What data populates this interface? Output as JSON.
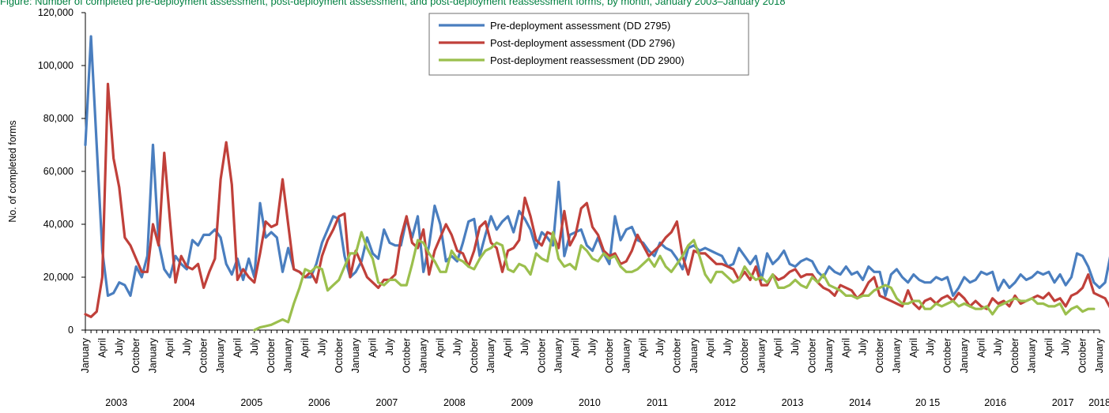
{
  "caption": "Figure: Number of completed pre-deployment assessment, post-deployment assessment, and post-deployment reassessment forms, by month, January 2003–January 2018",
  "chart_data": {
    "type": "line",
    "title": "",
    "xlabel": "",
    "ylabel": "No. of completed forms",
    "ylim": [
      0,
      120000
    ],
    "yticks": [
      0,
      20000,
      40000,
      60000,
      80000,
      100000,
      120000
    ],
    "ytick_labels": [
      "0",
      "20,000",
      "40,000",
      "60,000",
      "80,000",
      "100,000",
      "120,000"
    ],
    "x_start": "2003-01",
    "x_end": "2018-01",
    "month_tick_labels": [
      "January",
      "April",
      "July",
      "October"
    ],
    "years": [
      "2003",
      "2004",
      "2005",
      "2006",
      "2007",
      "2008",
      "2009",
      "2010",
      "2011",
      "2012",
      "2013",
      "2014",
      "20 15",
      "2016",
      "2017",
      "2018"
    ],
    "grid": false,
    "legend_position": "top-center",
    "series": [
      {
        "name": "Pre-deployment assessment (DD 2795)",
        "color": "#4a7ebf",
        "start": "2003-01",
        "values": [
          70000,
          111000,
          70000,
          30000,
          13000,
          14000,
          18000,
          17000,
          13000,
          24000,
          20000,
          28000,
          70000,
          33000,
          23000,
          20000,
          28000,
          25000,
          23000,
          34000,
          32000,
          36000,
          36000,
          38000,
          35000,
          25000,
          21000,
          27000,
          19000,
          27000,
          20000,
          48000,
          35000,
          37000,
          35000,
          22000,
          31000,
          23000,
          22000,
          20000,
          20000,
          25000,
          33000,
          38000,
          43000,
          42000,
          28000,
          20000,
          22000,
          26000,
          35000,
          29000,
          27000,
          38000,
          33000,
          32000,
          32000,
          42000,
          35000,
          43000,
          22000,
          32000,
          47000,
          40000,
          26000,
          28000,
          26000,
          33000,
          41000,
          42000,
          28000,
          36000,
          43000,
          38000,
          41000,
          43000,
          37000,
          45000,
          42000,
          38000,
          31000,
          37000,
          35000,
          32000,
          56000,
          28000,
          36000,
          37000,
          38000,
          32000,
          30000,
          35000,
          29000,
          25000,
          43000,
          34000,
          38000,
          39000,
          34000,
          33000,
          30000,
          28000,
          33000,
          31000,
          30000,
          27000,
          23000,
          31000,
          32000,
          30000,
          31000,
          30000,
          29000,
          28000,
          24000,
          25000,
          31000,
          28000,
          25000,
          28000,
          19000,
          29000,
          25000,
          27000,
          30000,
          25000,
          24000,
          26000,
          27000,
          26000,
          22000,
          20000,
          24000,
          22000,
          21000,
          24000,
          21000,
          22000,
          19000,
          24000,
          22000,
          22000,
          13000,
          21000,
          23000,
          20000,
          18000,
          21000,
          19000,
          18000,
          18000,
          20000,
          19000,
          20000,
          13000,
          16000,
          20000,
          18000,
          19000,
          22000,
          21000,
          22000,
          15000,
          19000,
          16000,
          18000,
          21000,
          19000,
          20000,
          22000,
          21000,
          22000,
          18000,
          21000,
          17000,
          20000,
          29000,
          28000,
          24000,
          18000,
          16000,
          18000,
          29000,
          29000
        ]
      },
      {
        "name": "Post-deployment assessment (DD 2796)",
        "color": "#c0403a",
        "start": "2003-01",
        "values": [
          6000,
          5000,
          7000,
          20000,
          93000,
          65000,
          54000,
          35000,
          32000,
          27000,
          22000,
          22000,
          40000,
          32000,
          67000,
          42000,
          18000,
          28000,
          24000,
          23000,
          25000,
          16000,
          22000,
          27000,
          57000,
          71000,
          55000,
          19000,
          23000,
          20000,
          18000,
          29000,
          41000,
          39000,
          40000,
          57000,
          40000,
          23000,
          22000,
          20000,
          22000,
          18000,
          28000,
          34000,
          38000,
          43000,
          44000,
          20000,
          30000,
          25000,
          20000,
          18000,
          16000,
          19000,
          19000,
          21000,
          35000,
          43000,
          33000,
          31000,
          38000,
          21000,
          30000,
          35000,
          40000,
          36000,
          30000,
          29000,
          24000,
          30000,
          39000,
          41000,
          33000,
          31000,
          22000,
          30000,
          31000,
          34000,
          50000,
          43000,
          34000,
          32000,
          37000,
          36000,
          31000,
          45000,
          32000,
          36000,
          46000,
          48000,
          39000,
          36000,
          30000,
          28000,
          29000,
          25000,
          26000,
          30000,
          36000,
          32000,
          28000,
          30000,
          32000,
          35000,
          37000,
          41000,
          28000,
          21000,
          30000,
          29000,
          29000,
          27000,
          25000,
          25000,
          24000,
          23000,
          19000,
          22000,
          19000,
          24000,
          17000,
          17000,
          21000,
          19000,
          20000,
          22000,
          23000,
          20000,
          21000,
          21000,
          18000,
          16000,
          15000,
          13000,
          17000,
          16000,
          15000,
          12000,
          14000,
          18000,
          20000,
          13000,
          12000,
          11000,
          10000,
          9000,
          15000,
          10000,
          8000,
          11000,
          12000,
          10000,
          12000,
          13000,
          11000,
          14000,
          12000,
          9000,
          11000,
          9000,
          8000,
          12000,
          10000,
          11000,
          9000,
          13000,
          10000,
          11000,
          12000,
          13000,
          12000,
          14000,
          11000,
          12000,
          9000,
          13000,
          14000,
          16000,
          21000,
          14000,
          13000,
          12000,
          8000,
          9000
        ]
      },
      {
        "name": "Post-deployment reassessment (DD 2900)",
        "color": "#9bbf4d",
        "start": "2005-07",
        "values": [
          0,
          1000,
          1500,
          2000,
          3000,
          4000,
          3000,
          10000,
          16000,
          23000,
          22000,
          24000,
          23000,
          15000,
          17000,
          19000,
          24000,
          29000,
          29000,
          37000,
          31000,
          27000,
          18000,
          17000,
          19000,
          19000,
          17000,
          17000,
          25000,
          34000,
          33000,
          29000,
          26000,
          22000,
          22000,
          30000,
          27000,
          26000,
          24000,
          23000,
          27000,
          30000,
          31000,
          33000,
          32000,
          23000,
          22000,
          25000,
          24000,
          21000,
          29000,
          27000,
          26000,
          37000,
          27000,
          24000,
          25000,
          23000,
          32000,
          30000,
          27000,
          26000,
          29000,
          27000,
          28000,
          24000,
          22000,
          22000,
          23000,
          25000,
          27000,
          24000,
          28000,
          24000,
          22000,
          25000,
          28000,
          32000,
          34000,
          28000,
          21000,
          18000,
          22000,
          22000,
          20000,
          18000,
          19000,
          24000,
          21000,
          19000,
          20000,
          18000,
          21000,
          16000,
          16000,
          17000,
          19000,
          17000,
          16000,
          20000,
          18000,
          21000,
          17000,
          16000,
          15000,
          13000,
          13000,
          12000,
          13000,
          13000,
          15000,
          16000,
          17000,
          16000,
          12000,
          10000,
          10000,
          11000,
          11000,
          8000,
          8000,
          10000,
          9000,
          10000,
          11000,
          9000,
          10000,
          9000,
          8000,
          8000,
          9000,
          6000,
          9000,
          10000,
          11000,
          12000,
          11000,
          11000,
          12000,
          10000,
          10000,
          9000,
          9000,
          10000,
          6000,
          8000,
          9000,
          7000,
          8000,
          8000
        ]
      }
    ]
  }
}
